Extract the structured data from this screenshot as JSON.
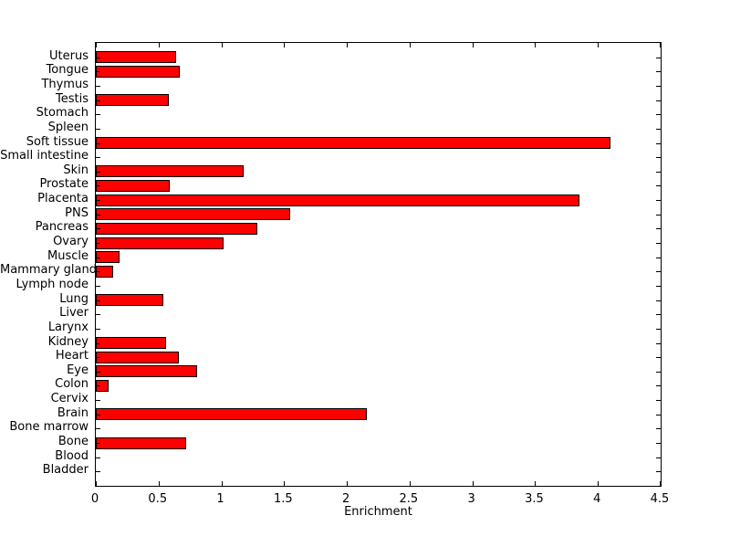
{
  "chart_data": {
    "type": "bar",
    "orientation": "horizontal",
    "title": "",
    "xlabel": "Enrichment",
    "ylabel": "",
    "xlim": [
      0,
      4.5
    ],
    "xticks": [
      0,
      0.5,
      1,
      1.5,
      2,
      2.5,
      3,
      3.5,
      4,
      4.5
    ],
    "xtick_labels": [
      "0",
      "0.5",
      "1",
      "1.5",
      "2",
      "2.5",
      "3",
      "3.5",
      "4",
      "4.5"
    ],
    "categories": [
      "Uterus",
      "Tongue",
      "Thymus",
      "Testis",
      "Stomach",
      "Spleen",
      "Soft tissue",
      "Small intestine",
      "Skin",
      "Prostate",
      "Placenta",
      "PNS",
      "Pancreas",
      "Ovary",
      "Muscle",
      "Mammary gland",
      "Lymph node",
      "Lung",
      "Liver",
      "Larynx",
      "Kidney",
      "Heart",
      "Eye",
      "Colon",
      "Cervix",
      "Brain",
      "Bone marrow",
      "Bone",
      "Blood",
      "Bladder"
    ],
    "values": [
      0.64,
      0.67,
      0,
      0.58,
      0,
      0,
      4.1,
      0,
      1.18,
      0.59,
      3.85,
      1.55,
      1.29,
      1.02,
      0.19,
      0.14,
      0,
      0.54,
      0,
      0,
      0.56,
      0.66,
      0.81,
      0.1,
      0,
      2.16,
      0,
      0.72,
      0,
      0
    ],
    "bar_color": "#ff0000",
    "bar_edge_color": "#000000",
    "axis_color": "#000000",
    "background_color": "#ffffff",
    "grid": false,
    "legend": null
  }
}
